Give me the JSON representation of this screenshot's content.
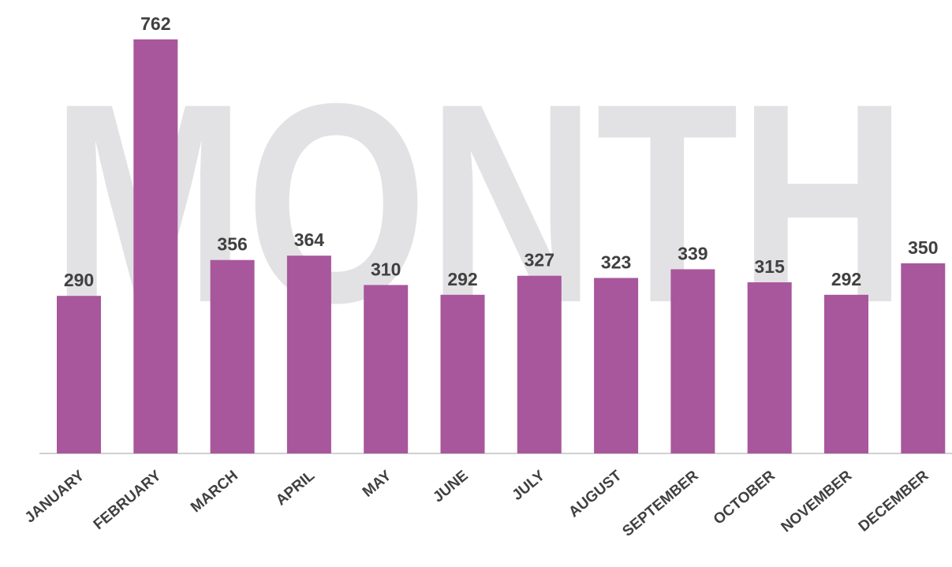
{
  "chart_data": {
    "type": "bar",
    "title": "MONTH",
    "categories": [
      "JANUARY",
      "FEBRUARY",
      "MARCH",
      "APRIL",
      "MAY",
      "JUNE",
      "JULY",
      "AUGUST",
      "SEPTEMBER",
      "OCTOBER",
      "NOVEMBER",
      "DECEMBER"
    ],
    "values": [
      290,
      762,
      356,
      364,
      310,
      292,
      327,
      323,
      339,
      315,
      292,
      350
    ],
    "color": "#a8579c"
  }
}
